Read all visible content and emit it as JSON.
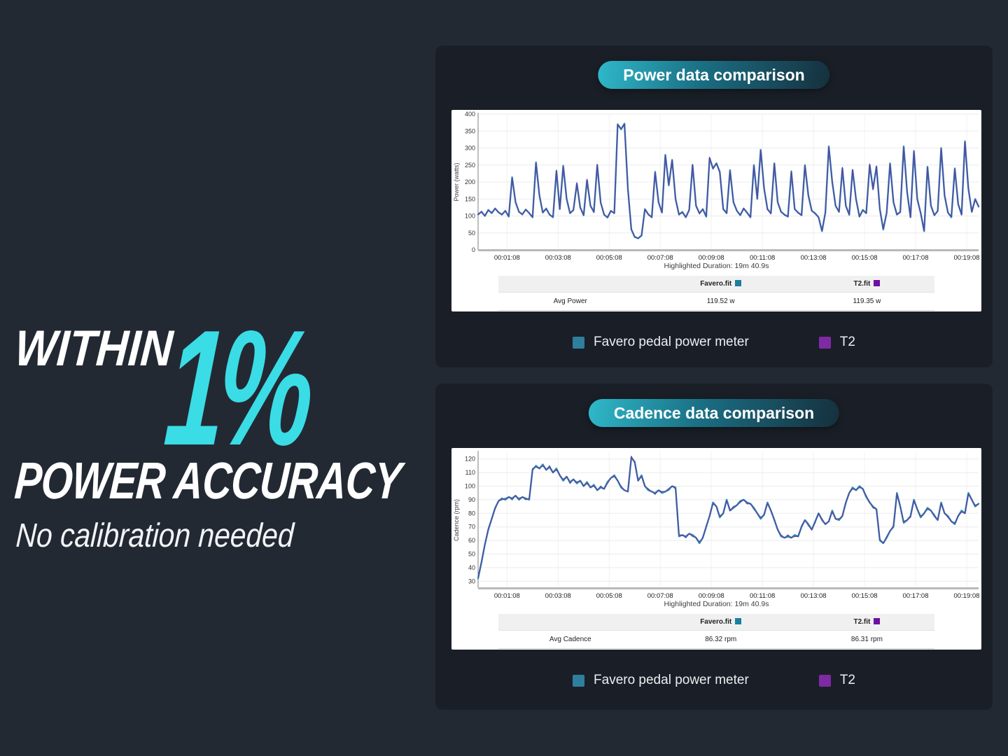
{
  "headline": {
    "within": "WITHIN",
    "percent": "1%",
    "power_accuracy": "POWER ACCURACY",
    "subtitle": "No calibration needed",
    "accent_color": "#3adce6"
  },
  "legend": {
    "favero_label": "Favero pedal power meter",
    "t2_label": "T2",
    "favero_color": "#2e7f9e",
    "t2_color": "#7f2aa5"
  },
  "colors": {
    "page_background": "#232933",
    "panel_background": "#1a1f27",
    "pill_gradient_start": "#2fb9ca",
    "pill_gradient_end": "#16303d",
    "favero_file_swatch": "#1a7fa0",
    "t2_file_swatch": "#6e10a0"
  },
  "chart_data": [
    {
      "type": "line",
      "title": "Power data comparison",
      "xlabel": "",
      "ylabel": "Power (watts)",
      "ylim": [
        0,
        400
      ],
      "yticks": [
        0,
        50,
        100,
        150,
        200,
        250,
        300,
        350,
        400
      ],
      "x_tick_labels": [
        "00:01:08",
        "00:03:08",
        "00:05:08",
        "00:07:08",
        "00:09:08",
        "00:11:08",
        "00:13:08",
        "00:15:08",
        "00:17:08",
        "00:19:08"
      ],
      "sample_interval_s": 8,
      "grid": true,
      "highlighted_duration": "Highlighted Duration: 19m 40.9s",
      "summary": {
        "metric": "Avg Power",
        "favero_file": "Favero.fit",
        "t2_file": "T2.fit",
        "favero_value": "119.52 w",
        "t2_value": "119.35 w"
      },
      "series": [
        {
          "name": "Favero.fit",
          "color": "#2d8aa6",
          "values": [
            105,
            112,
            100,
            118,
            108,
            122,
            111,
            104,
            115,
            98,
            214,
            140,
            112,
            105,
            119,
            108,
            96,
            258,
            160,
            110,
            122,
            104,
            96,
            232,
            120,
            248,
            150,
            108,
            118,
            195,
            125,
            102,
            205,
            130,
            112,
            250,
            140,
            104,
            95,
            115,
            108,
            370,
            355,
            372,
            180,
            60,
            38,
            34,
            42,
            120,
            105,
            96,
            230,
            140,
            110,
            280,
            190,
            265,
            150,
            104,
            112,
            96,
            118,
            250,
            130,
            108,
            120,
            98,
            270,
            240,
            255,
            230,
            120,
            108,
            235,
            140,
            115,
            102,
            122,
            110,
            96,
            250,
            150,
            295,
            180,
            120,
            108,
            255,
            140,
            112,
            104,
            98,
            230,
            120,
            110,
            102,
            250,
            160,
            115,
            108,
            96,
            55,
            110,
            305,
            200,
            130,
            112,
            240,
            130,
            104,
            235,
            150,
            98,
            118,
            108,
            250,
            180,
            245,
            120,
            60,
            110,
            255,
            140,
            104,
            112,
            305,
            170,
            96,
            290,
            150,
            108,
            55,
            245,
            130,
            102,
            115,
            300,
            160,
            110,
            96,
            240,
            135,
            104,
            320,
            180,
            112,
            150,
            128
          ]
        },
        {
          "name": "T2.fit",
          "color": "#5a42a8",
          "values": [
            103,
            114,
            100,
            116,
            110,
            122,
            109,
            104,
            115,
            100,
            210,
            143,
            112,
            103,
            119,
            110,
            96,
            255,
            163,
            110,
            120,
            104,
            98,
            235,
            120,
            244,
            152,
            108,
            116,
            198,
            125,
            102,
            208,
            130,
            110,
            252,
            138,
            104,
            97,
            115,
            108,
            368,
            358,
            370,
            176,
            62,
            40,
            34,
            44,
            120,
            103,
            96,
            227,
            142,
            110,
            277,
            193,
            265,
            148,
            104,
            110,
            96,
            116,
            252,
            130,
            106,
            120,
            100,
            273,
            238,
            255,
            227,
            122,
            108,
            232,
            142,
            115,
            104,
            122,
            108,
            96,
            247,
            152,
            292,
            183,
            120,
            106,
            255,
            142,
            112,
            102,
            98,
            233,
            120,
            108,
            102,
            247,
            162,
            115,
            106,
            96,
            57,
            110,
            302,
            203,
            130,
            112,
            243,
            130,
            102,
            237,
            148,
            98,
            116,
            108,
            253,
            177,
            247,
            122,
            62,
            110,
            252,
            143,
            104,
            110,
            302,
            172,
            96,
            293,
            148,
            108,
            57,
            242,
            132,
            102,
            113,
            297,
            163,
            110,
            98,
            238,
            137,
            104,
            317,
            183,
            112,
            148,
            126
          ]
        }
      ]
    },
    {
      "type": "line",
      "title": "Cadence data comparison",
      "xlabel": "",
      "ylabel": "Cadence (rpm)",
      "ylim": [
        25,
        125
      ],
      "yticks": [
        30,
        40,
        50,
        60,
        70,
        80,
        90,
        100,
        110,
        120
      ],
      "x_tick_labels": [
        "00:01:08",
        "00:03:08",
        "00:05:08",
        "00:07:08",
        "00:09:08",
        "00:11:08",
        "00:13:08",
        "00:15:08",
        "00:17:08",
        "00:19:08"
      ],
      "sample_interval_s": 8,
      "grid": true,
      "highlighted_duration": "Highlighted Duration: 19m 40.9s",
      "summary": {
        "metric": "Avg Cadence",
        "favero_file": "Favero.fit",
        "t2_file": "T2.fit",
        "favero_value": "86.32 rpm",
        "t2_value": "86.31 rpm"
      },
      "series": [
        {
          "name": "Favero.fit",
          "color": "#2d8aa6",
          "values": [
            32,
            44,
            57,
            68,
            76,
            84,
            89,
            91,
            90,
            92,
            91,
            93,
            90,
            92,
            91,
            90,
            112,
            115,
            113,
            116,
            112,
            114,
            110,
            113,
            108,
            104,
            107,
            103,
            105,
            102,
            104,
            100,
            103,
            99,
            101,
            97,
            99,
            98,
            103,
            106,
            108,
            104,
            99,
            97,
            96,
            121,
            118,
            104,
            108,
            100,
            97,
            96,
            95,
            97,
            95,
            96,
            98,
            100,
            99,
            63,
            64,
            63,
            65,
            64,
            62,
            58,
            62,
            70,
            78,
            88,
            85,
            77,
            80,
            90,
            82,
            84,
            86,
            89,
            90,
            88,
            87,
            84,
            80,
            76,
            79,
            88,
            82,
            75,
            68,
            63,
            62,
            63,
            62,
            64,
            63,
            70,
            75,
            72,
            68,
            74,
            80,
            75,
            72,
            74,
            82,
            76,
            75,
            78,
            88,
            95,
            99,
            97,
            100,
            98,
            92,
            88,
            85,
            83,
            60,
            58,
            62,
            67,
            70,
            95,
            85,
            73,
            75,
            78,
            90,
            83,
            77,
            80,
            84,
            82,
            78,
            75,
            88,
            80,
            78,
            74,
            72,
            78,
            82,
            80,
            95,
            90,
            85,
            87
          ]
        },
        {
          "name": "T2.fit",
          "color": "#5a42a8",
          "values": [
            33,
            45,
            57,
            69,
            76,
            83,
            89,
            90,
            91,
            92,
            90,
            93,
            91,
            92,
            90,
            91,
            113,
            114,
            113,
            115,
            112,
            115,
            110,
            112,
            108,
            105,
            107,
            102,
            105,
            103,
            104,
            100,
            102,
            99,
            100,
            97,
            100,
            98,
            102,
            106,
            107,
            104,
            100,
            97,
            96,
            122,
            117,
            104,
            107,
            100,
            98,
            96,
            94,
            97,
            96,
            96,
            97,
            100,
            98,
            64,
            64,
            62,
            65,
            63,
            62,
            59,
            62,
            71,
            78,
            87,
            85,
            78,
            80,
            89,
            82,
            85,
            86,
            88,
            90,
            87,
            87,
            83,
            80,
            77,
            79,
            87,
            82,
            76,
            68,
            64,
            62,
            64,
            62,
            63,
            63,
            71,
            75,
            71,
            68,
            73,
            80,
            76,
            72,
            74,
            81,
            76,
            76,
            78,
            87,
            95,
            98,
            97,
            99,
            98,
            93,
            88,
            84,
            83,
            61,
            58,
            63,
            67,
            71,
            94,
            85,
            74,
            75,
            77,
            89,
            83,
            78,
            80,
            83,
            82,
            79,
            75,
            87,
            80,
            77,
            74,
            73,
            78,
            81,
            80,
            94,
            90,
            86,
            87
          ]
        }
      ]
    }
  ]
}
